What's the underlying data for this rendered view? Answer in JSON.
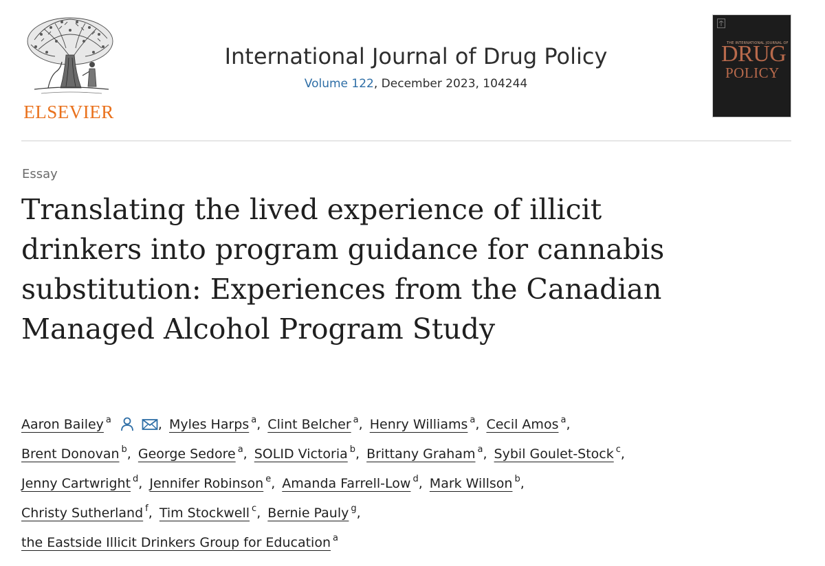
{
  "header": {
    "publisher_name": "ELSEVIER",
    "journal_title": "International Journal of Drug Policy",
    "volume_link": "Volume 122",
    "issue_rest": ", December 2023, 104244",
    "cover": {
      "small_text": "THE INTERNATIONAL JOURNAL OF",
      "line1": "DRUG",
      "line2": "POLICY"
    }
  },
  "article": {
    "type": "Essay",
    "title_lines": [
      "Translating the lived experience of illicit",
      "drinkers into program guidance for cannabis",
      "substitution: Experiences from the Canadian",
      "Managed Alcohol Program Study"
    ]
  },
  "icons": {
    "person": "person-icon",
    "email": "envelope-icon",
    "publisher_logo": "elsevier-tree-logo"
  },
  "colors": {
    "publisher": "#e9711c",
    "link": "#2e6ea6",
    "cover_bg": "#1c1c1c",
    "cover_text": "#b86a4c"
  },
  "authors": [
    {
      "name": "Aaron Bailey",
      "aff": "a"
    },
    {
      "name": "Myles Harps",
      "aff": "a"
    },
    {
      "name": "Clint Belcher",
      "aff": "a"
    },
    {
      "name": "Henry Williams",
      "aff": "a"
    },
    {
      "name": "Cecil Amos",
      "aff": "a"
    },
    {
      "name": "Brent Donovan",
      "aff": "b"
    },
    {
      "name": "George Sedore",
      "aff": "a"
    },
    {
      "name": "SOLID Victoria",
      "aff": "b"
    },
    {
      "name": "Brittany Graham",
      "aff": "a"
    },
    {
      "name": "Sybil Goulet-Stock",
      "aff": "c"
    },
    {
      "name": "Jenny Cartwright",
      "aff": "d"
    },
    {
      "name": "Jennifer Robinson",
      "aff": "e"
    },
    {
      "name": "Amanda Farrell-Low",
      "aff": "d"
    },
    {
      "name": "Mark Willson",
      "aff": "b"
    },
    {
      "name": "Christy Sutherland",
      "aff": "f"
    },
    {
      "name": "Tim Stockwell",
      "aff": "c"
    },
    {
      "name": "Bernie Pauly",
      "aff": "g"
    },
    {
      "name": "the Eastside Illicit Drinkers Group for Education",
      "aff": "a"
    }
  ]
}
